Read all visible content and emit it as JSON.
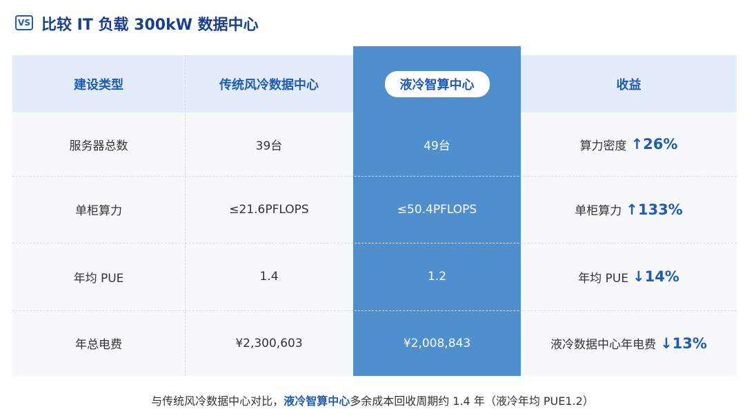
{
  "header": {
    "icon": "VS",
    "title": "比较 IT 负载 300kW 数据中心"
  },
  "table": {
    "columns": [
      "建设类型",
      "传统风冷数据中心",
      "液冷智算中心",
      "收益"
    ],
    "rows": [
      [
        "服务器总数",
        "39台",
        "49台",
        {
          "text": "算力密度",
          "change": "↑26%"
        }
      ],
      [
        "单柜算力",
        "≤21.6PFLOPS",
        "≤50.4PFLOPS",
        {
          "text": "单柜算力",
          "change": "↑133%"
        }
      ],
      [
        "年均 PUE",
        "1.4",
        "1.2",
        {
          "text": "年均 PUE",
          "change": "↓14%"
        }
      ],
      [
        "年总电费",
        "¥2,300,603",
        "¥2,008,843",
        {
          "text": "液冷数据中心年电费",
          "change": "↓13%"
        }
      ]
    ]
  },
  "footer": {
    "before": "与传统风冷数据中心对比，",
    "highlight": "液冷智算中心",
    "after": "多余成本回收周期约 1.4 年（液冷年均 PUE1.2）"
  }
}
